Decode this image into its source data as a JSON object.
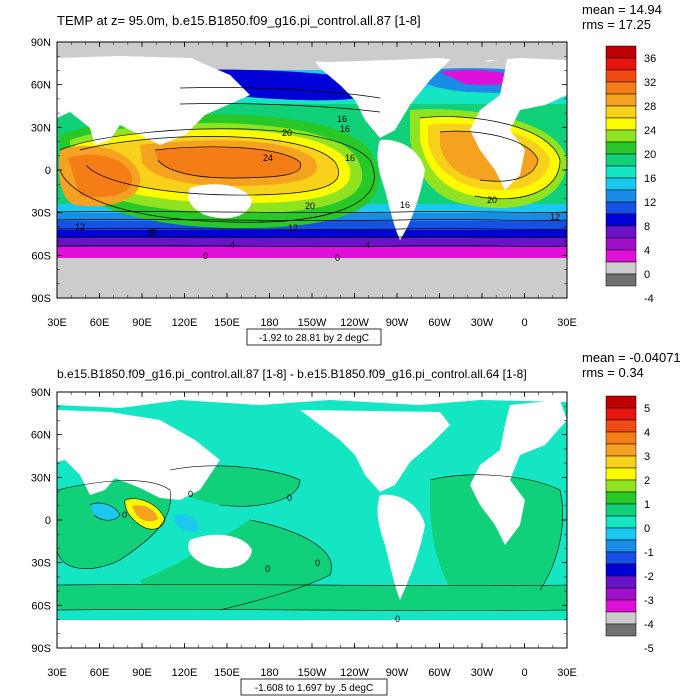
{
  "panels": [
    {
      "title": "TEMP at z=  95.0m, b.e15.B1850.f09_g16.pi_control.all.87 [1-8]",
      "stats": {
        "mean": "mean = 14.94",
        "rms": "rms = 17.25"
      },
      "range_label": "-1.92 to 28.81 by 2 degC",
      "colorbar": {
        "labels": [
          "36",
          "32",
          "28",
          "24",
          "20",
          "16",
          "12",
          "8",
          "4",
          "0",
          "-4"
        ],
        "colors": [
          "#c00000",
          "#e8140f",
          "#f24a14",
          "#f57d16",
          "#f5a221",
          "#f8d11a",
          "#fdfb00",
          "#8fe320",
          "#28c828",
          "#10d07a",
          "#14e6c4",
          "#1cc8f0",
          "#1a8ce6",
          "#1750e6",
          "#0000d8",
          "#6a12c8",
          "#a010c8",
          "#e010d8",
          "#cccccc",
          "#707070"
        ],
        "land_color": "#cccccc"
      },
      "contour_labels": [
        "20",
        "16",
        "12",
        "8",
        "4",
        "0",
        "24",
        "20",
        "16",
        "12",
        "8",
        "4",
        "0",
        "20",
        "16",
        "12",
        "16"
      ]
    },
    {
      "title": "b.e15.B1850.f09_g16.pi_control.all.87 [1-8] - b.e15.B1850.f09_g16.pi_control.all.64 [1-8]",
      "stats": {
        "mean": "mean = -0.04071",
        "rms": "rms = 0.34"
      },
      "range_label": "-1.608 to 1.697 by .5 degC",
      "colorbar": {
        "labels": [
          "5",
          "4",
          "3",
          "2",
          "1",
          "0",
          "-1",
          "-2",
          "-3",
          "-4",
          "-5"
        ],
        "colors": [
          "#c00000",
          "#e8140f",
          "#f24a14",
          "#f57d16",
          "#f5a221",
          "#f8d11a",
          "#fdfb00",
          "#8fe320",
          "#28c828",
          "#10d07a",
          "#14e6c4",
          "#1cc8f0",
          "#1a8ce6",
          "#1750e6",
          "#0000d8",
          "#6a12c8",
          "#a010c8",
          "#e010d8",
          "#cccccc",
          "#707070"
        ],
        "land_color": "#ffffff"
      },
      "contour_labels": [
        "0",
        "0",
        "0",
        "0",
        "0",
        "0"
      ]
    }
  ],
  "axes": {
    "lat_labels": [
      "90N",
      "60N",
      "30N",
      "0",
      "30S",
      "60S",
      "90S"
    ],
    "lon_labels": [
      "30E",
      "60E",
      "90E",
      "120E",
      "150E",
      "180",
      "150W",
      "120W",
      "90W",
      "60W",
      "30W",
      "0",
      "30E"
    ]
  }
}
